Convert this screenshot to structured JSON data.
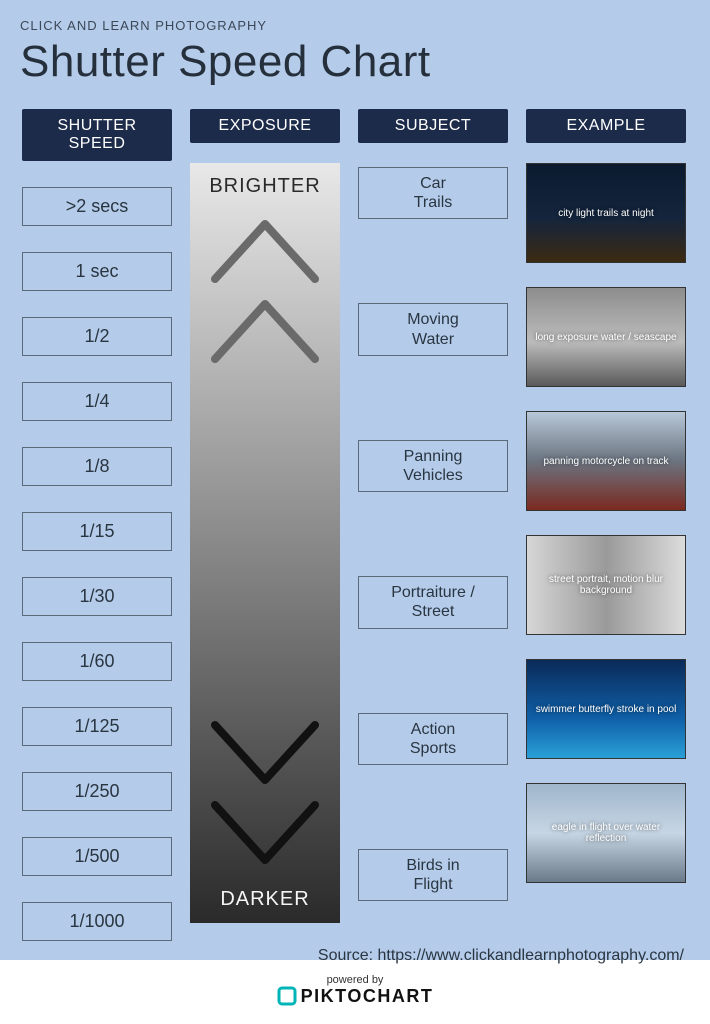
{
  "layout": {
    "background_color": "#b4cce9",
    "header_bar_color": "#1d2b4a",
    "border_color": "#5a6a7a",
    "text_color": "#2a3542",
    "title_fontsize": 44
  },
  "header": {
    "small": "CLICK AND LEARN PHOTOGRAPHY",
    "title": "Shutter Speed Chart"
  },
  "columns": {
    "speed": "SHUTTER SPEED",
    "exposure": "EXPOSURE",
    "subject": "SUBJECT",
    "example": "EXAMPLE"
  },
  "speeds": [
    ">2 secs",
    "1 sec",
    "1/2",
    "1/4",
    "1/8",
    "1/15",
    "1/30",
    "1/60",
    "1/125",
    "1/250",
    "1/500",
    "1/1000"
  ],
  "exposure": {
    "top_label": "BRIGHTER",
    "bottom_label": "DARKER",
    "gradient_top": "#e8e8e8",
    "gradient_bottom": "#2a2a2a",
    "chevron_up_color": "#6a6a6a",
    "chevron_down_color": "#111111",
    "chevron_stroke": 8
  },
  "subjects": [
    "Car\nTrails",
    "Moving\nWater",
    "Panning\nVehicles",
    "Portraiture /\nStreet",
    "Action\nSports",
    "Birds in\nFlight"
  ],
  "examples": [
    {
      "alt": "city light trails at night",
      "bg": "linear-gradient(180deg,#0b1a2e 0%,#14253d 55%,#3c2a12 100%)"
    },
    {
      "alt": "long exposure water / seascape",
      "bg": "linear-gradient(180deg,#8d8d8d 0%,#bcbcbc 55%,#5a5a5a 100%)"
    },
    {
      "alt": "panning motorcycle on track",
      "bg": "linear-gradient(180deg,#b7c8d8 0%,#6b7480 50%,#7a2a20 100%)"
    },
    {
      "alt": "street portrait, motion blur background",
      "bg": "linear-gradient(90deg,#d6d6d6 0%,#9a9a9a 50%,#dcdcdc 100%)"
    },
    {
      "alt": "swimmer butterfly stroke in pool",
      "bg": "linear-gradient(180deg,#0a2a58 0%,#1060a8 60%,#2aa0d8 100%)"
    },
    {
      "alt": "eagle in flight over water reflection",
      "bg": "linear-gradient(180deg,#9fb6cc 0%,#c7d6e4 50%,#6a7a88 100%)"
    }
  ],
  "source": "Source: https://www.clickandlearnphotography.com/",
  "footer": {
    "powered": "powered by",
    "brand": "PIKTOCHART",
    "logo_color": "#00b5b8"
  }
}
